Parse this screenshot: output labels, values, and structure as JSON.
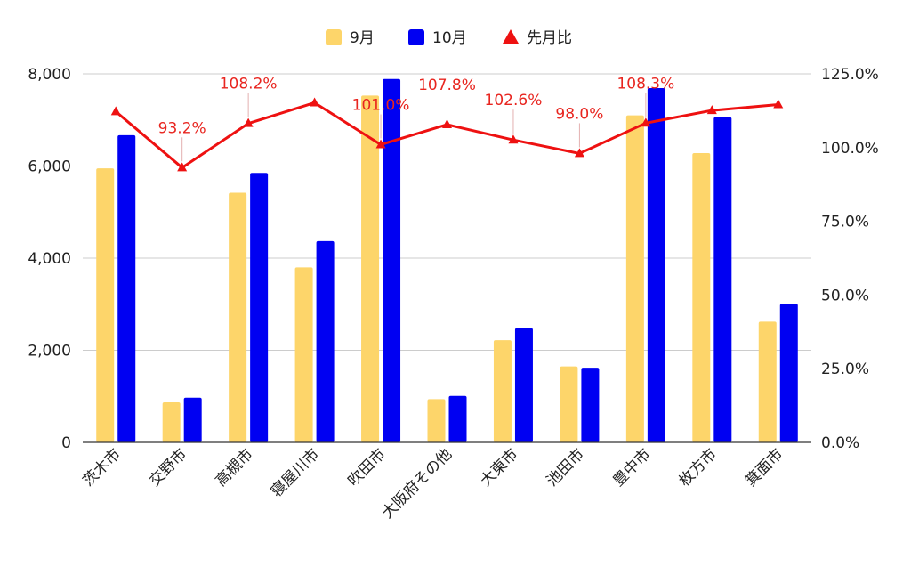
{
  "colors": {
    "sep": "#FDD56A",
    "oct": "#0000F2",
    "ratio": "#EE1111",
    "grid": "#CCCCCC",
    "axis": "#333333"
  },
  "legend": [
    {
      "label": "9月",
      "icon": "square",
      "color": "#FDD56A"
    },
    {
      "label": "10月",
      "icon": "square",
      "color": "#0000F2"
    },
    {
      "label": "先月比",
      "icon": "triangle-up",
      "color": "#EE1111"
    }
  ],
  "chart_data": {
    "type": "bar",
    "categories": [
      "茨木市",
      "交野市",
      "高槻市",
      "寝屋川市",
      "吹田市",
      "大阪府その他",
      "大東市",
      "池田市",
      "豊中市",
      "枚方市",
      "箕面市"
    ],
    "series": [
      {
        "name": "9月",
        "type": "bar",
        "axis": "left",
        "values": [
          5950,
          870,
          5420,
          3800,
          7530,
          940,
          2220,
          1650,
          7100,
          6280,
          2620
        ]
      },
      {
        "name": "10月",
        "type": "bar",
        "axis": "left",
        "values": [
          6670,
          970,
          5850,
          4370,
          7890,
          1010,
          2480,
          1620,
          7690,
          7060,
          3010
        ]
      },
      {
        "name": "先月比",
        "type": "line",
        "axis": "right",
        "marker": "triangle",
        "values": [
          112.2,
          93.2,
          108.2,
          115.2,
          101.0,
          107.8,
          102.6,
          98.0,
          108.3,
          112.6,
          114.6
        ]
      }
    ],
    "data_labels": [
      {
        "category": "交野市",
        "text": "93.2%"
      },
      {
        "category": "高槻市",
        "text": "108.2%"
      },
      {
        "category": "吹田市",
        "text": "101.0%"
      },
      {
        "category": "大阪府その他",
        "text": "107.8%"
      },
      {
        "category": "大東市",
        "text": "102.6%"
      },
      {
        "category": "池田市",
        "text": "98.0%"
      },
      {
        "category": "豊中市",
        "text": "108.3%"
      }
    ],
    "ylim": [
      0,
      8000
    ],
    "yticks": [
      "0",
      "2,000",
      "4,000",
      "6,000",
      "8,000"
    ],
    "y2lim": [
      0,
      125
    ],
    "y2ticks": [
      "0.0%",
      "25.0%",
      "50.0%",
      "75.0%",
      "100.0%",
      "125.0%"
    ],
    "grid": true,
    "legend_position": "top"
  }
}
